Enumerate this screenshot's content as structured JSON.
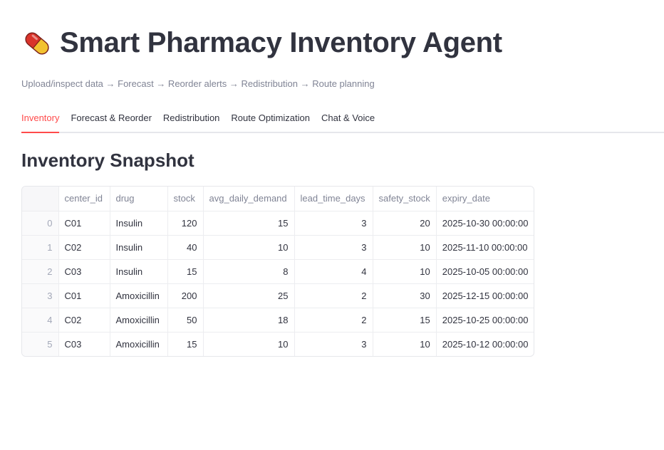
{
  "app": {
    "title": "Smart Pharmacy Inventory Agent",
    "icon": "pill-icon",
    "subtitle": "Upload/inspect data → Forecast → Reorder alerts → Redistribution → Route planning"
  },
  "tabs": [
    {
      "label": "Inventory",
      "active": true
    },
    {
      "label": "Forecast & Reorder",
      "active": false
    },
    {
      "label": "Redistribution",
      "active": false
    },
    {
      "label": "Route Optimization",
      "active": false
    },
    {
      "label": "Chat & Voice",
      "active": false
    }
  ],
  "section": {
    "title": "Inventory Snapshot"
  },
  "table": {
    "columns": [
      "",
      "center_id",
      "drug",
      "stock",
      "avg_daily_demand",
      "lead_time_days",
      "safety_stock",
      "expiry_date"
    ],
    "rows": [
      [
        "0",
        "C01",
        "Insulin",
        "120",
        "15",
        "3",
        "20",
        "2025-10-30 00:00:00"
      ],
      [
        "1",
        "C02",
        "Insulin",
        "40",
        "10",
        "3",
        "10",
        "2025-11-10 00:00:00"
      ],
      [
        "2",
        "C03",
        "Insulin",
        "15",
        "8",
        "4",
        "10",
        "2025-10-05 00:00:00"
      ],
      [
        "3",
        "C01",
        "Amoxicillin",
        "200",
        "25",
        "2",
        "30",
        "2025-12-15 00:00:00"
      ],
      [
        "4",
        "C02",
        "Amoxicillin",
        "50",
        "18",
        "2",
        "15",
        "2025-10-25 00:00:00"
      ],
      [
        "5",
        "C03",
        "Amoxicillin",
        "15",
        "10",
        "3",
        "10",
        "2025-10-12 00:00:00"
      ]
    ]
  },
  "colors": {
    "accent": "#ff4b4b",
    "text": "#31333f",
    "muted": "#808495"
  }
}
